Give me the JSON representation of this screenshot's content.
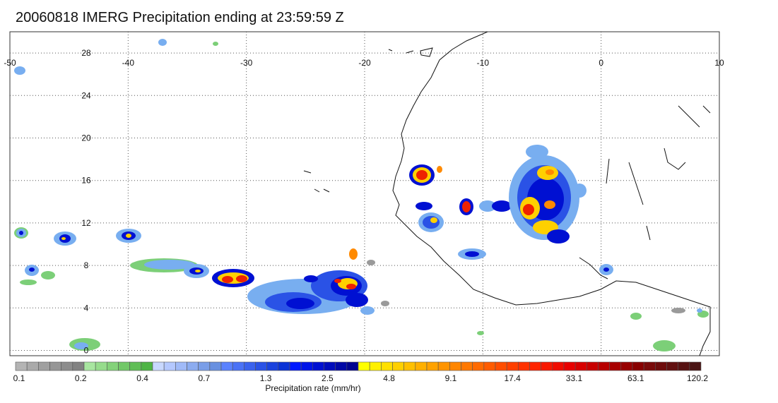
{
  "title": "20060818 IMERG Precipitation ending at 23:59:59 Z",
  "map": {
    "lon_range": [
      -50,
      10
    ],
    "lat_range": [
      -0.5,
      30
    ],
    "lon_ticks": [
      "-50",
      "-40",
      "-30",
      "-20",
      "-10",
      "0",
      "10"
    ],
    "lat_ticks": [
      "0",
      "4",
      "8",
      "12",
      "16",
      "20",
      "24",
      "28"
    ],
    "gridlines": "dotted"
  },
  "colorbar": {
    "label": "Precipitation rate (mm/hr)",
    "tick_labels": [
      "0.1",
      "0.2",
      "0.4",
      "0.7",
      "1.3",
      "2.5",
      "4.8",
      "9.1",
      "17.4",
      "33.1",
      "63.1",
      "120.2"
    ],
    "colors": [
      "#b4b4b4",
      "#aaaaaa",
      "#a0a0a0",
      "#969696",
      "#8c8c8c",
      "#828282",
      "#a8e6a0",
      "#96dc8c",
      "#84d27a",
      "#72c868",
      "#60be56",
      "#4eb444",
      "#c8d8ff",
      "#b4c8ff",
      "#a0baf8",
      "#8cacf0",
      "#7a9ee8",
      "#6890e0",
      "#5a82ff",
      "#4a72f6",
      "#3a62ee",
      "#2a52e6",
      "#1a42de",
      "#0a32d6",
      "#0018ff",
      "#0014e8",
      "#0010d2",
      "#000cbc",
      "#0008a6",
      "#000490",
      "#ffff00",
      "#fff000",
      "#ffe000",
      "#ffd000",
      "#ffc000",
      "#ffb000",
      "#ffa200",
      "#ff9400",
      "#ff8600",
      "#ff7800",
      "#ff6a00",
      "#ff5c00",
      "#ff4e00",
      "#ff4000",
      "#ff3200",
      "#ff2400",
      "#f81800",
      "#f00c00",
      "#e80000",
      "#d80000",
      "#c80000",
      "#b80000",
      "#a80000",
      "#980000",
      "#880000",
      "#7a0a0a",
      "#6e0c0c",
      "#621010",
      "#561212",
      "#4a1414"
    ]
  },
  "palette": {
    "gray": "#9a9a9a",
    "green": "#7ccf78",
    "lightblue": "#78aef0",
    "blue": "#2a52e6",
    "darkblue": "#0010d2",
    "yellow": "#ffd000",
    "orange": "#ff8a00",
    "red": "#ee2200",
    "coast": "#111111"
  }
}
